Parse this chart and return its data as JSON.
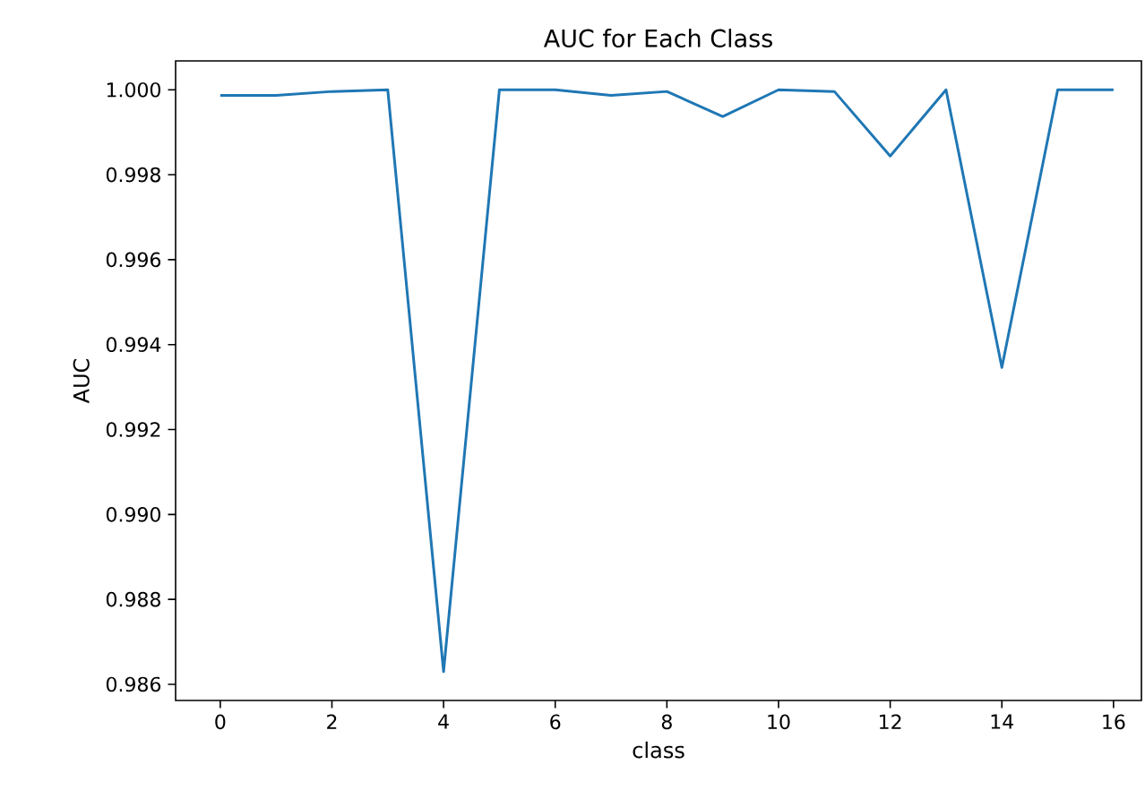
{
  "chart_data": {
    "type": "line",
    "title": "AUC for Each Class",
    "xlabel": "class",
    "ylabel": "AUC",
    "x": [
      0,
      1,
      2,
      3,
      4,
      5,
      6,
      7,
      8,
      9,
      10,
      11,
      12,
      13,
      14,
      15,
      16
    ],
    "series": [
      {
        "color": "#1f77b4",
        "values": [
          0.99987,
          0.99987,
          0.99996,
          1.0,
          0.9863,
          1.0,
          1.0,
          0.99987,
          0.99996,
          0.99937,
          1.0,
          0.99996,
          0.99844,
          1.0,
          0.99346,
          1.0,
          1.0
        ]
      }
    ],
    "xlim": [
      -0.8,
      16.5
    ],
    "ylim": [
      0.98562,
      1.00068
    ],
    "xticks": [
      0,
      2,
      4,
      6,
      8,
      10,
      12,
      14,
      16
    ],
    "yticks": [
      {
        "value": 0.986,
        "label": "0.986"
      },
      {
        "value": 0.988,
        "label": "0.988"
      },
      {
        "value": 0.99,
        "label": "0.990"
      },
      {
        "value": 0.992,
        "label": "0.992"
      },
      {
        "value": 0.994,
        "label": "0.994"
      },
      {
        "value": 0.996,
        "label": "0.996"
      },
      {
        "value": 0.998,
        "label": "0.998"
      },
      {
        "value": 1.0,
        "label": "1.000"
      }
    ],
    "grid": false,
    "marker": "none",
    "line_style": "solid"
  }
}
